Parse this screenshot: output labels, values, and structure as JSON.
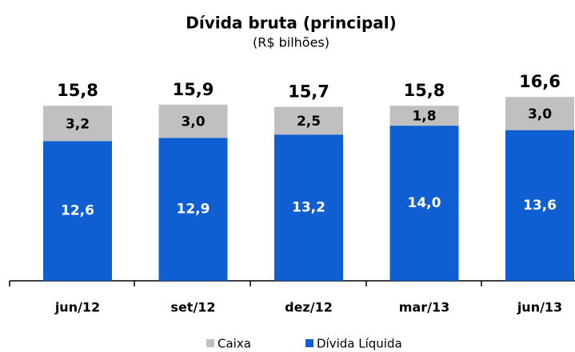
{
  "chart_data": {
    "type": "stacked_bar",
    "title": "Dívida bruta (principal)",
    "subtitle": "(R$ bilhões)",
    "categories": [
      "jun/12",
      "set/12",
      "dez/12",
      "mar/13",
      "jun/13"
    ],
    "series": [
      {
        "name": "Dívida Líquida",
        "color": "#0f5fd2",
        "values": [
          12.6,
          12.9,
          13.2,
          14.0,
          13.6
        ],
        "value_labels": [
          "12,6",
          "12,9",
          "13,2",
          "14,0",
          "13,6"
        ]
      },
      {
        "name": "Caixa",
        "color": "#c0c0c0",
        "values": [
          3.2,
          3.0,
          2.5,
          1.8,
          3.0
        ],
        "value_labels": [
          "3,2",
          "3,0",
          "2,5",
          "1,8",
          "3,0"
        ]
      }
    ],
    "totals": [
      15.8,
      15.9,
      15.7,
      15.8,
      16.6
    ],
    "total_labels": [
      "15,8",
      "15,9",
      "15,7",
      "15,8",
      "16,6"
    ],
    "legend_order": [
      1,
      0
    ]
  }
}
